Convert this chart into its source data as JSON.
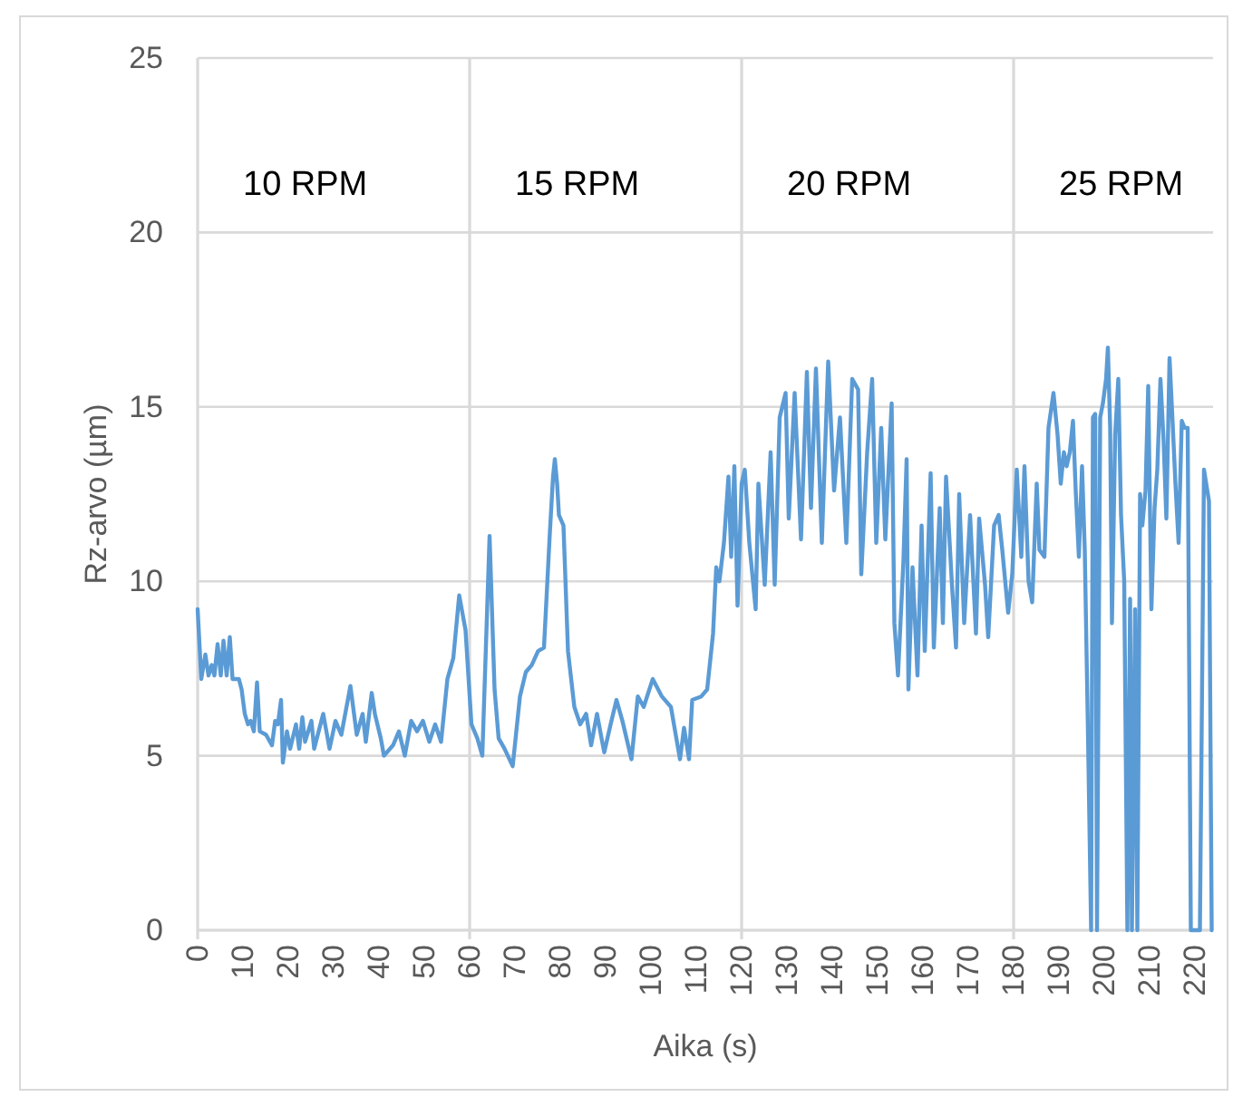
{
  "chart_data": {
    "type": "line",
    "xlabel": "Aika (s)",
    "ylabel": "Rz-arvo (µm)",
    "color": "#5b9bd5",
    "x": [
      0,
      0.8,
      1.7,
      2.4,
      3.1,
      3.7,
      4.4,
      5.1,
      5.7,
      6.4,
      7.1,
      7.7,
      9.1,
      9.7,
      10.4,
      11.1,
      11.7,
      12.4,
      13.1,
      13.7,
      15.1,
      16.4,
      17.1,
      17.7,
      18.4,
      18.8,
      19.7,
      20.4,
      21.7,
      22.4,
      23.1,
      23.7,
      25.1,
      25.7,
      27.7,
      29.1,
      30.4,
      31.7,
      33.7,
      35.1,
      36.4,
      37.1,
      38.4,
      39.1,
      40.4,
      41.1,
      43.1,
      44.4,
      45.7,
      47.1,
      48.4,
      49.7,
      51.1,
      52.4,
      53.7,
      55.1,
      56.4,
      57.7,
      59.1,
      60.4,
      61.7,
      62.8,
      64.4,
      65.5,
      66.4,
      67.7,
      69.5,
      71.1,
      72.4,
      73.7,
      75.1,
      76.4,
      77.7,
      78.4,
      78.8,
      79.3,
      79.7,
      80.7,
      81.7,
      83.1,
      84.4,
      85.7,
      86.8,
      88.1,
      89.1,
      89.7,
      91.1,
      92.4,
      93.7,
      95.7,
      97.1,
      98.4,
      100.4,
      102.4,
      104.4,
      106.4,
      107.3,
      108.4,
      109.1,
      111.1,
      112.4,
      113.7,
      114.4,
      115.1,
      116.1,
      117.1,
      117.7,
      118.4,
      119.1,
      120,
      120.7,
      121.7,
      123.1,
      123.7,
      125.1,
      126.4,
      127.3,
      128.4,
      129.7,
      130.4,
      131.7,
      133.1,
      134.4,
      135.3,
      136.4,
      137.7,
      139.1,
      140.4,
      141.7,
      143.1,
      144.4,
      145.7,
      146.4,
      147.7,
      148.8,
      149.7,
      150.8,
      151.7,
      153.1,
      153.7,
      154.5,
      155.7,
      156.4,
      156.8,
      157.7,
      158.8,
      159.7,
      160.4,
      161.7,
      162.4,
      163.7,
      164.4,
      165.1,
      166.4,
      167.3,
      168,
      169.1,
      170.4,
      171.7,
      172.4,
      173.7,
      174.4,
      175.7,
      176.7,
      177.5,
      178.8,
      179.7,
      180.7,
      181.7,
      182.4,
      183.3,
      184.1,
      185.1,
      185.7,
      186.8,
      187.7,
      188.8,
      189.7,
      190.4,
      191.1,
      191.7,
      192.4,
      193.1,
      193.7,
      194.4,
      195.1,
      195.7,
      196.4,
      197.1,
      197.5,
      198,
      198.4,
      199.1,
      199.7,
      200.4,
      200.8,
      201.3,
      201.7,
      202.4,
      203.1,
      203.7,
      204.4,
      205.1,
      205.7,
      206.1,
      206.8,
      207.3,
      207.9,
      208.4,
      209.1,
      209.7,
      210.4,
      211.1,
      211.7,
      212.4,
      213.1,
      213.7,
      214.4,
      215.1,
      215.7,
      216.4,
      217.1,
      217.7,
      218.4,
      219.1,
      221.1,
      222,
      223.1,
      223.7
    ],
    "values": [
      9.2,
      7.2,
      7.9,
      7.3,
      7.6,
      7.3,
      8.2,
      7.3,
      8.3,
      7.3,
      8.4,
      7.2,
      7.2,
      6.9,
      6.2,
      5.9,
      6.0,
      5.7,
      7.1,
      5.7,
      5.6,
      5.3,
      6.0,
      5.9,
      6.6,
      4.8,
      5.7,
      5.2,
      5.9,
      5.2,
      6.1,
      5.4,
      6.0,
      5.2,
      6.2,
      5.2,
      6.0,
      5.6,
      7.0,
      5.6,
      6.2,
      5.4,
      6.8,
      6.2,
      5.5,
      5.0,
      5.3,
      5.7,
      5.0,
      6.0,
      5.7,
      6.0,
      5.4,
      5.9,
      5.4,
      7.2,
      7.8,
      9.6,
      8.6,
      5.9,
      5.5,
      5.0,
      11.3,
      6.9,
      5.5,
      5.2,
      4.7,
      6.7,
      7.4,
      7.6,
      8.0,
      8.1,
      11.4,
      13.0,
      13.5,
      12.8,
      11.9,
      11.6,
      8.0,
      6.4,
      5.9,
      6.2,
      5.3,
      6.2,
      5.5,
      5.1,
      5.9,
      6.6,
      6.0,
      4.9,
      6.7,
      6.4,
      7.2,
      6.7,
      6.4,
      4.9,
      5.8,
      4.9,
      6.6,
      6.7,
      6.9,
      8.5,
      10.4,
      10.0,
      11.1,
      13.0,
      10.7,
      13.3,
      9.3,
      12.8,
      13.2,
      11.1,
      9.2,
      12.8,
      9.9,
      13.7,
      9.9,
      14.7,
      15.4,
      11.8,
      15.4,
      11.2,
      16.0,
      12.1,
      16.1,
      11.1,
      16.3,
      12.6,
      14.7,
      11.1,
      15.8,
      15.5,
      10.2,
      13.7,
      15.8,
      11.1,
      14.4,
      11.2,
      15.1,
      8.8,
      7.3,
      10.6,
      13.5,
      6.9,
      10.4,
      7.3,
      11.6,
      8.0,
      13.1,
      8.1,
      12.1,
      8.8,
      13.0,
      9.9,
      8.1,
      12.5,
      8.8,
      11.9,
      8.5,
      11.8,
      9.9,
      8.4,
      11.6,
      11.9,
      10.9,
      9.1,
      10.2,
      13.2,
      10.7,
      13.3,
      10.0,
      9.4,
      12.8,
      10.9,
      10.7,
      14.4,
      15.4,
      14.2,
      12.8,
      13.7,
      13.3,
      13.7,
      14.6,
      12.6,
      10.7,
      13.3,
      10.9,
      5.7,
      0,
      14.7,
      14.8,
      0,
      14.7,
      15.1,
      15.8,
      16.7,
      14.4,
      8.8,
      14.2,
      15.8,
      11.9,
      10.0,
      0,
      9.5,
      0,
      9.2,
      0,
      12.5,
      11.6,
      12.6,
      15.6,
      9.2,
      12.1,
      13.2,
      15.8,
      14.0,
      11.8,
      16.4,
      14.5,
      12.8,
      11.1,
      14.6,
      14.4,
      14.4,
      0,
      0,
      13.2,
      12.3,
      0
    ],
    "xlim": [
      0,
      224
    ],
    "xticks": [
      0,
      10,
      20,
      30,
      40,
      50,
      60,
      70,
      80,
      90,
      100,
      110,
      120,
      130,
      140,
      150,
      160,
      170,
      180,
      190,
      200,
      210,
      220
    ],
    "ylim": [
      0,
      25
    ],
    "yticks": [
      0,
      5,
      10,
      15,
      20,
      25
    ],
    "grid": "y",
    "ref_lines": [
      {
        "axis": "x",
        "value": 60,
        "color": "#d9d9d9"
      },
      {
        "axis": "x",
        "value": 120,
        "color": "#d9d9d9"
      },
      {
        "axis": "x",
        "value": 180,
        "color": "#d9d9d9"
      }
    ],
    "annotations": [
      "10 RPM",
      "15 RPM",
      "20 RPM",
      "25 RPM"
    ]
  }
}
